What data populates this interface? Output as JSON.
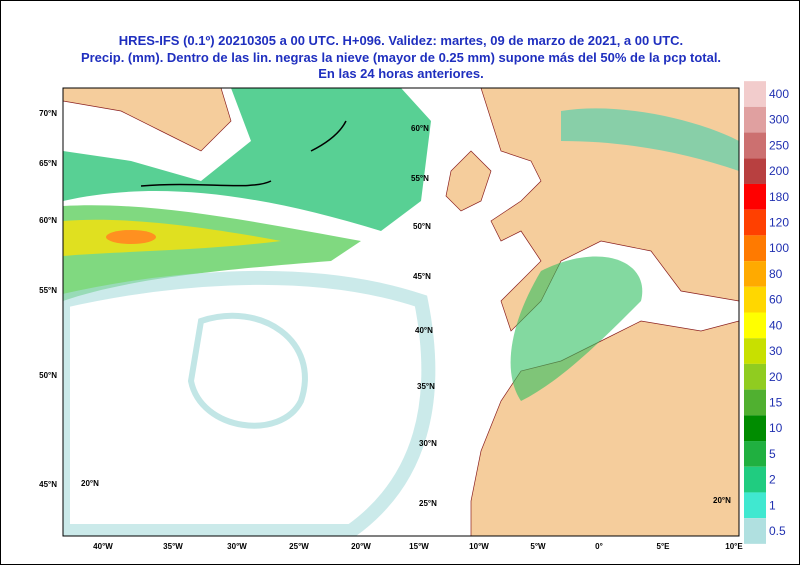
{
  "header": {
    "lines": [
      "HRES-IFS (0.1º) 20210305 a 00 UTC.  H+096. Validez: martes, 09 de marzo de 2021,  a  00 UTC.",
      "Precip. (mm). Dentro de las lin. negras la nieve (mayor de 0.25 mm) supone más del 50% de la pcp total.",
      "En las 24 horas anteriores."
    ]
  },
  "colorbar": {
    "items": [
      {
        "label": "400",
        "color": "#f2cccc"
      },
      {
        "label": "300",
        "color": "#e0a0a0"
      },
      {
        "label": "250",
        "color": "#cc7070"
      },
      {
        "label": "200",
        "color": "#b84040"
      },
      {
        "label": "180",
        "color": "#ff0000"
      },
      {
        "label": "120",
        "color": "#ff4000"
      },
      {
        "label": "100",
        "color": "#ff7a00"
      },
      {
        "label": "80",
        "color": "#ffaa00"
      },
      {
        "label": "60",
        "color": "#ffd700"
      },
      {
        "label": "40",
        "color": "#ffff00"
      },
      {
        "label": "30",
        "color": "#c8e000"
      },
      {
        "label": "20",
        "color": "#90cc20"
      },
      {
        "label": "15",
        "color": "#50b030"
      },
      {
        "label": "10",
        "color": "#008c00"
      },
      {
        "label": "5",
        "color": "#20b040"
      },
      {
        "label": "2",
        "color": "#20cc80"
      },
      {
        "label": "1",
        "color": "#40e8d0"
      },
      {
        "label": "0.5",
        "color": "#b0e0e0"
      }
    ]
  },
  "axes": {
    "x_labels": [
      "40°W",
      "35°W",
      "30°W",
      "25°W",
      "20°W",
      "15°W",
      "10°W",
      "5°W",
      "0°",
      "5°E",
      "10°E"
    ],
    "y_labels": [
      "70°N",
      "65°N",
      "60°N",
      "55°N",
      "50°N",
      "45°N"
    ],
    "inner_labels": [
      "60°N",
      "55°N",
      "50°N",
      "45°N",
      "40°N",
      "35°N",
      "30°N",
      "25°N",
      "20°N",
      "20°N"
    ]
  }
}
